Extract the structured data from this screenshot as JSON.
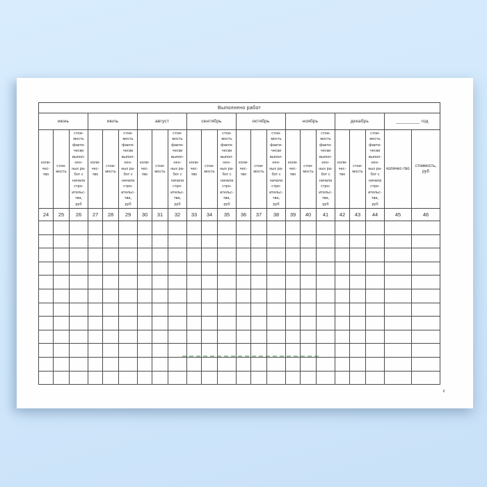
{
  "background": {
    "top_color": "#d8ecfd",
    "bottom_color": "#c9e1f8"
  },
  "page": {
    "color": "#fefefe"
  },
  "table": {
    "title": "Выполнено работ",
    "months": [
      {
        "label": "июнь",
        "numbers": [
          "24",
          "25",
          "26"
        ]
      },
      {
        "label": "июль",
        "numbers": [
          "27",
          "28",
          "29"
        ]
      },
      {
        "label": "август",
        "numbers": [
          "30",
          "31",
          "32"
        ]
      },
      {
        "label": "сентябрь",
        "numbers": [
          "33",
          "34",
          "35"
        ]
      },
      {
        "label": "октябрь",
        "numbers": [
          "36",
          "37",
          "38"
        ]
      },
      {
        "label": "ноябрь",
        "numbers": [
          "39",
          "40",
          "41"
        ]
      },
      {
        "label": "декабрь",
        "numbers": [
          "42",
          "43",
          "44"
        ]
      }
    ],
    "year_group": {
      "label": "_________ год",
      "numbers": [
        "45",
        "46"
      ]
    },
    "sub_labels": {
      "quantity": "коли-\nчес-\nтво",
      "cost": "стои-\nмость",
      "cost_since_start": "стои-\nмость\nфакти-\nчески\nвыпол-\nнен-\nных ра-\nбот с\nначала\nстро-\nительс-\nтва,\nруб",
      "year_quantity": "количес-тво",
      "year_cost": "стоимость,\nруб"
    },
    "empty_rows": 12
  },
  "artifacts": {
    "green_dash_color": "#2e7d32"
  }
}
